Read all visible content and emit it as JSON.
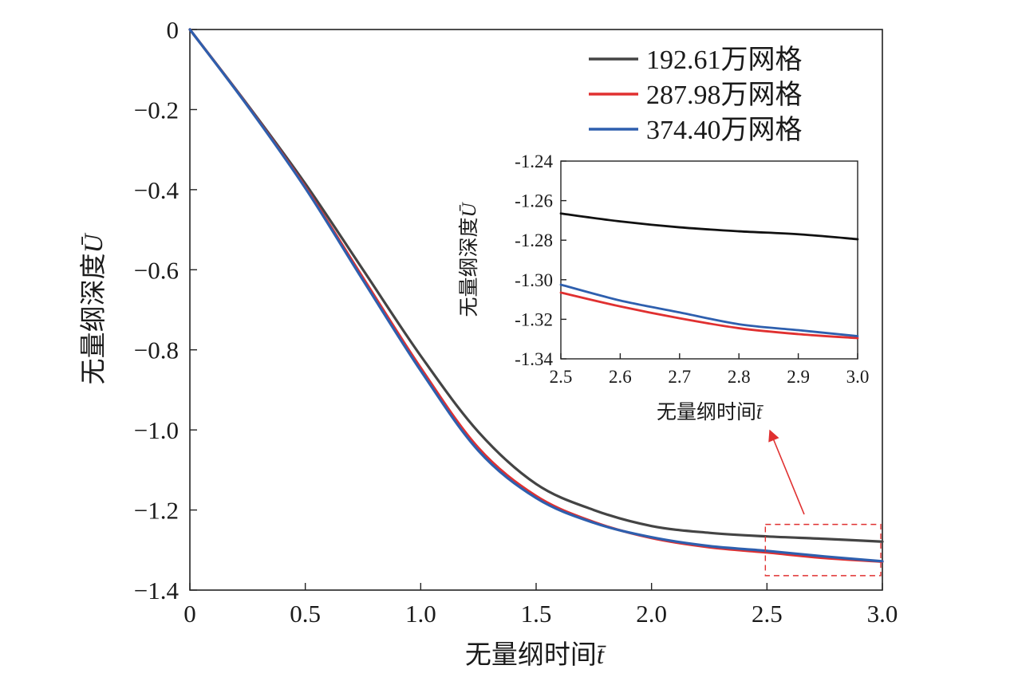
{
  "chart_data": [
    {
      "id": "main",
      "type": "line",
      "xlabel": "无量纲时间",
      "xlabel_symbol": "t̄",
      "ylabel": "无量纲深度",
      "ylabel_symbol": "Ū",
      "xlim": [
        0,
        3.0
      ],
      "ylim": [
        -1.4,
        0
      ],
      "x_ticks": [
        0,
        0.5,
        1.0,
        1.5,
        2.0,
        2.5,
        3.0
      ],
      "x_tick_labels": [
        "0",
        "0.5",
        "1.0",
        "1.5",
        "2.0",
        "2.5",
        "3.0"
      ],
      "y_ticks": [
        0,
        -0.2,
        -0.4,
        -0.6,
        -0.8,
        -1.0,
        -1.2,
        -1.4
      ],
      "y_tick_labels": [
        "0",
        "−0.2",
        "−0.4",
        "−0.6",
        "−0.8",
        "−1.0",
        "−1.2",
        "−1.4"
      ],
      "legend_position": "top-right",
      "grid": false,
      "series": [
        {
          "name": "192.61万网格",
          "color": "#444444",
          "x": [
            0,
            0.25,
            0.5,
            0.75,
            1.0,
            1.25,
            1.5,
            1.75,
            2.0,
            2.25,
            2.5,
            2.75,
            3.0
          ],
          "y": [
            0,
            -0.188,
            -0.385,
            -0.6,
            -0.815,
            -1.005,
            -1.135,
            -1.2,
            -1.24,
            -1.257,
            -1.266,
            -1.272,
            -1.279
          ]
        },
        {
          "name": "287.98万网格",
          "color": "#e03030",
          "x": [
            0,
            0.25,
            0.5,
            0.75,
            1.0,
            1.25,
            1.5,
            1.75,
            2.0,
            2.25,
            2.5,
            2.75,
            3.0
          ],
          "y": [
            0,
            -0.19,
            -0.393,
            -0.62,
            -0.845,
            -1.045,
            -1.165,
            -1.23,
            -1.27,
            -1.293,
            -1.306,
            -1.32,
            -1.329
          ]
        },
        {
          "name": "374.40万网格",
          "color": "#2e5fae",
          "x": [
            0,
            0.25,
            0.5,
            0.75,
            1.0,
            1.25,
            1.5,
            1.75,
            2.0,
            2.25,
            2.5,
            2.75,
            3.0
          ],
          "y": [
            0,
            -0.191,
            -0.396,
            -0.626,
            -0.852,
            -1.052,
            -1.17,
            -1.232,
            -1.268,
            -1.29,
            -1.302,
            -1.316,
            -1.328
          ]
        }
      ]
    },
    {
      "id": "inset",
      "type": "line",
      "xlabel": "无量纲时间",
      "xlabel_symbol": "t̄",
      "ylabel": "无量纲深度",
      "ylabel_symbol": "Ū",
      "xlim": [
        2.5,
        3.0
      ],
      "ylim": [
        -1.34,
        -1.24
      ],
      "x_ticks": [
        2.5,
        2.6,
        2.7,
        2.8,
        2.9,
        3.0
      ],
      "x_tick_labels": [
        "2.5",
        "2.6",
        "2.7",
        "2.8",
        "2.9",
        "3.0"
      ],
      "y_ticks": [
        -1.24,
        -1.26,
        -1.28,
        -1.3,
        -1.32,
        -1.34
      ],
      "y_tick_labels": [
        "-1.24",
        "-1.26",
        "-1.28",
        "-1.30",
        "-1.32",
        "-1.34"
      ],
      "grid": false,
      "series": [
        {
          "name": "192.61万网格",
          "color": "#111111",
          "x": [
            2.5,
            2.6,
            2.7,
            2.8,
            2.9,
            3.0
          ],
          "y": [
            -1.2665,
            -1.2705,
            -1.2735,
            -1.2755,
            -1.277,
            -1.2795
          ]
        },
        {
          "name": "287.98万网格",
          "color": "#e03030",
          "x": [
            2.5,
            2.6,
            2.7,
            2.8,
            2.9,
            3.0
          ],
          "y": [
            -1.3065,
            -1.3135,
            -1.3195,
            -1.3245,
            -1.3275,
            -1.3295
          ]
        },
        {
          "name": "374.40万网格",
          "color": "#2e5fae",
          "x": [
            2.5,
            2.6,
            2.7,
            2.8,
            2.9,
            3.0
          ],
          "y": [
            -1.3025,
            -1.3105,
            -1.3165,
            -1.3225,
            -1.3255,
            -1.3285
          ]
        }
      ]
    }
  ],
  "zoom_region": {
    "x_range": [
      2.5,
      3.0
    ],
    "y_range": [
      -1.34,
      -1.22
    ],
    "color": "#e03030"
  }
}
